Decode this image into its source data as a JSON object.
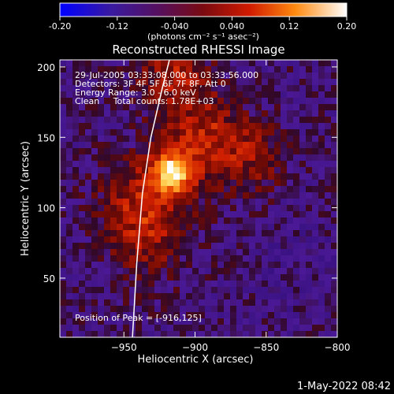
{
  "chart_data": {
    "type": "heatmap",
    "title": "Reconstructed RHESSI Image",
    "xlabel": "Heliocentric X (arcsec)",
    "ylabel": "Heliocentric Y (arcsec)",
    "xlim": [
      -995,
      -800
    ],
    "ylim": [
      8,
      205
    ],
    "xticks": [
      -950,
      -900,
      -850,
      -800
    ],
    "yticks": [
      50,
      100,
      150,
      200
    ],
    "colorbar": {
      "range": [
        -0.2,
        0.2
      ],
      "ticks": [
        "-0.20",
        "-0.12",
        "-0.040",
        "0.040",
        "0.12",
        "0.20"
      ],
      "units": "(photons cm⁻² s⁻¹ asec⁻²)"
    },
    "annotations": [
      "29-Jul-2005 03:33:08.000 to 03:33:56.000",
      "Detectors: 3F 4F 5F 6F 7F 8F, Att 0",
      "Energy Range: 3.0 - 6.0 keV",
      "Clean     Total counts: 1.78E+03",
      "Position of Peak = [-916,125]"
    ],
    "peak": {
      "x": -916,
      "y": 125
    },
    "limb": [
      [
        -944,
        8
      ],
      [
        -941,
        60
      ],
      [
        -937,
        110
      ],
      [
        -931,
        150
      ],
      [
        -923,
        185
      ],
      [
        -918,
        205
      ]
    ]
  },
  "footer": {
    "date": "1-May-2022 08:42"
  }
}
